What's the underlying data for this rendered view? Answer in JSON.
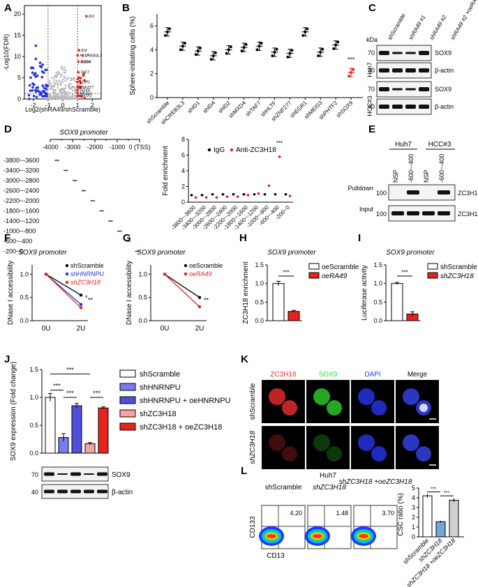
{
  "panels": {
    "A": {
      "letter": "A",
      "ylabel": "-Log10(FDR)",
      "xlabel": "Log2(shRA49/shScramble)",
      "yticks": [
        "20",
        "15",
        "10",
        "5",
        "0"
      ],
      "xticks": [
        "-2",
        "-1",
        "0",
        "1",
        "2"
      ],
      "genes": [
        "ID1",
        "ID2",
        "HLTF",
        "CREB3L3",
        "MXD4",
        "ID4",
        "TAF7",
        "EGR1",
        "ZNF277",
        "SOX9",
        "MEIS3",
        "PHTF2"
      ]
    },
    "B": {
      "letter": "B",
      "ylabel": "Sphere-initiating cells (%)",
      "yticks": [
        "6",
        "4",
        "2",
        "0"
      ],
      "sig": "***"
    },
    "C": {
      "letter": "C",
      "kda": "kDa",
      "lanes": [
        "shScramble",
        "shRA49 #1",
        "shRA49 #2",
        "shRA49 #2 +oeRA49"
      ],
      "rows": [
        {
          "kda": "70",
          "label": "SOX9",
          "group": "Huh7"
        },
        {
          "kda": "40",
          "label": "β-actin",
          "group": "Huh7"
        },
        {
          "kda": "70",
          "label": "SOX9",
          "group": "HCC#3"
        },
        {
          "kda": "40",
          "label": "β-actin",
          "group": "HCC#3"
        }
      ],
      "groups": [
        "Huh7",
        "HCC#3"
      ]
    },
    "D": {
      "letter": "D",
      "promoter_title": "SOX9 promoter",
      "axis_ticks": [
        "-4000",
        "-3000",
        "-2000",
        "-1000",
        "0 (TSS)"
      ],
      "axis_minor": [
        "-3500",
        "-2500",
        "-1500",
        "-500"
      ],
      "regions": [
        "-3800~-3600",
        "-3400~-3200",
        "-3000~-2800",
        "-2600~-2400",
        "-2200~-2000",
        "-1800~-1600",
        "-1400~-1200",
        "-1000~-800",
        "-600~-400",
        "-200~0"
      ],
      "ylabel": "Fold enrichment",
      "legend": [
        "IgG",
        "Anti-ZC3H18"
      ],
      "yticks": [
        "8",
        "6",
        "4",
        "2",
        "0"
      ],
      "sig": "***"
    },
    "E": {
      "letter": "E",
      "groups": [
        "Huh7",
        "HCC#3"
      ],
      "lanes": [
        "NSP",
        "-600~-400",
        "NSP",
        "-600~-400"
      ],
      "rows": [
        {
          "name": "Pulldown",
          "kda": "100",
          "label": "ZC3H18"
        },
        {
          "name": "Input",
          "kda": "100",
          "label": "ZC3H18"
        }
      ]
    },
    "F": {
      "letter": "F",
      "title": "SOX9 promoter",
      "ylabel": "DNase I accessibility",
      "yticks": [
        "1.0",
        "0.5",
        "0.0"
      ],
      "xticks": [
        "0U",
        "2U"
      ],
      "legend": [
        "shScramble",
        "shHNRNPU",
        "shZC3H18"
      ],
      "sig": [
        "*",
        "**"
      ]
    },
    "G": {
      "letter": "G",
      "title": "SOX9 promoter",
      "ylabel": "DNase I accessibility",
      "yticks": [
        "1.0",
        "0.5",
        "0.0"
      ],
      "xticks": [
        "0U",
        "2U"
      ],
      "legend": [
        "oeScramble",
        "oeRA49"
      ],
      "sig": "**"
    },
    "H": {
      "letter": "H",
      "title": "SOX9 promoter",
      "ylabel": "ZC3H18 enrichment",
      "yticks": [
        "1.5",
        "1.0",
        "0.5",
        "0.0"
      ],
      "legend": [
        "oeScramble",
        "oeRA49"
      ],
      "sig": "***"
    },
    "I": {
      "letter": "I",
      "title": "SOX9 promoter",
      "ylabel": "Luciferase activity",
      "yticks": [
        "1.5",
        "1.0",
        "0.5",
        "0.0"
      ],
      "legend": [
        "shScramble",
        "shZC3H18"
      ],
      "sig": "***"
    },
    "J": {
      "letter": "J",
      "ylabel": "SOX9 expression (Fold change)",
      "yticks": [
        "1.5",
        "1.0",
        "0.5",
        "0.0"
      ],
      "legend": [
        "shScramble",
        "shHNRNPU",
        "shHNRNPU + oeHNRNPU",
        "shZC3H18",
        "shZC3H18 + oeZC3H18"
      ],
      "sig": [
        "***",
        "***",
        "***",
        "***"
      ],
      "blot_rows": [
        {
          "kda": "70",
          "label": "SOX9"
        },
        {
          "kda": "40",
          "label": "β-actin"
        }
      ]
    },
    "K": {
      "letter": "K",
      "columns": [
        "ZC3H18",
        "SOX9",
        "DAPI",
        "Merge"
      ],
      "rows": [
        "shScramble",
        "shZC3H18"
      ]
    },
    "L": {
      "letter": "L",
      "title": "Huh7",
      "conditions": [
        "shScramble",
        "shZC3H18",
        "shZC3H18 +oeZC3H18"
      ],
      "gate_values": [
        "4.20",
        "1.48",
        "3.70"
      ],
      "xlabel": "CD13",
      "ylabel": "CD133",
      "bar_ylabel": "CSC ratio (%)",
      "bar_yticks": [
        "5",
        "4",
        "3",
        "2",
        "1",
        "0"
      ],
      "bar_labels": [
        "shScramble",
        "shZC3H18",
        "shZC3H18 +oeZC3H18"
      ],
      "sig": [
        "***",
        "***"
      ]
    }
  },
  "chart_data": [
    {
      "panel": "A",
      "type": "scatter",
      "xlabel": "Log2(shRA49/shScramble)",
      "ylabel": "-Log10(FDR)",
      "xlim": [
        -2.6,
        2.6
      ],
      "ylim": [
        0,
        22
      ],
      "annotations": [
        {
          "label": "ID1",
          "x": 1.6,
          "y": 19.5
        },
        {
          "label": "ID2",
          "x": 1.1,
          "y": 11.5
        },
        {
          "label": "HLTF",
          "x": 1.0,
          "y": 10.3
        },
        {
          "label": "CREB3L3",
          "x": 1.35,
          "y": 10.3
        },
        {
          "label": "MXD4",
          "x": 1.05,
          "y": 8.8
        },
        {
          "label": "ID4",
          "x": 1.3,
          "y": 8.8
        },
        {
          "label": "TAF7",
          "x": 1.05,
          "y": 6.3
        },
        {
          "label": "EGR1",
          "x": 1.0,
          "y": 4.0
        },
        {
          "label": "ZNF277",
          "x": 1.0,
          "y": 2.8
        },
        {
          "label": "SOX9",
          "x": 1.0,
          "y": 2.1
        },
        {
          "label": "MEIS3",
          "x": 1.0,
          "y": 1.4
        },
        {
          "label": "PHTF2",
          "x": 1.0,
          "y": 0.7
        }
      ]
    },
    {
      "panel": "B",
      "type": "scatter",
      "categories": [
        "shScramble",
        "shCREB3L3",
        "shID1",
        "shID4",
        "shID2",
        "shMXD4",
        "shTAF7",
        "shHLTF",
        "shZNF277",
        "shEGR1",
        "shMEIS3",
        "shPHTF2",
        "shSOX9"
      ],
      "values": [
        5.5,
        4.3,
        3.9,
        3.5,
        4.0,
        4.2,
        4.3,
        3.8,
        3.7,
        5.5,
        3.8,
        4.4,
        2.1
      ],
      "ylabel": "Sphere-initiating cells (%)",
      "ylim": [
        0,
        7
      ]
    },
    {
      "panel": "D",
      "type": "scatter",
      "categories": [
        "-3800~-3600",
        "-3400~-3200",
        "-3000~-2800",
        "-2600~-2400",
        "-2200~-2000",
        "-1800~-1600",
        "-1400~-1200",
        "-1000~-800",
        "-600~-400",
        "-200~0"
      ],
      "series": [
        {
          "name": "IgG",
          "values": [
            0.9,
            0.9,
            1.0,
            1.0,
            1.0,
            1.0,
            1.0,
            1.0,
            1.0,
            1.0
          ]
        },
        {
          "name": "Anti-ZC3H18",
          "values": [
            0.6,
            0.6,
            0.6,
            0.7,
            0.7,
            0.9,
            1.1,
            2.1,
            5.8,
            0.8
          ]
        }
      ],
      "ylabel": "Fold enrichment",
      "ylim": [
        0,
        8
      ]
    },
    {
      "panel": "F",
      "type": "line",
      "x": [
        "0U",
        "2U"
      ],
      "series": [
        {
          "name": "shScramble",
          "values": [
            1.0,
            0.55
          ]
        },
        {
          "name": "shHNRNPU",
          "values": [
            1.0,
            0.35
          ]
        },
        {
          "name": "shZC3H18",
          "values": [
            1.0,
            0.28
          ]
        }
      ],
      "ylim": [
        0,
        1.2
      ]
    },
    {
      "panel": "G",
      "type": "line",
      "x": [
        "0U",
        "2U"
      ],
      "series": [
        {
          "name": "oeScramble",
          "values": [
            1.0,
            0.5
          ]
        },
        {
          "name": "oeRA49",
          "values": [
            1.0,
            0.3
          ]
        }
      ],
      "ylim": [
        0,
        1.2
      ]
    },
    {
      "panel": "H",
      "type": "bar",
      "categories": [
        "oeScramble",
        "oeRA49"
      ],
      "values": [
        1.0,
        0.25
      ],
      "errors": [
        0.06,
        0.03
      ],
      "ylim": [
        0,
        1.5
      ]
    },
    {
      "panel": "I",
      "type": "bar",
      "categories": [
        "shScramble",
        "shZC3H18"
      ],
      "values": [
        1.0,
        0.18
      ],
      "errors": [
        0.03,
        0.06
      ],
      "ylim": [
        0,
        1.5
      ]
    },
    {
      "panel": "J",
      "type": "bar",
      "categories": [
        "shScramble",
        "shHNRNPU",
        "shHNRNPU + oeHNRNPU",
        "shZC3H18",
        "shZC3H18 + oeZC3H18"
      ],
      "values": [
        1.0,
        0.28,
        0.85,
        0.17,
        0.81
      ],
      "errors": [
        0.07,
        0.07,
        0.04,
        0.02,
        0.02
      ],
      "ylim": [
        0,
        1.5
      ]
    },
    {
      "panel": "L",
      "type": "bar",
      "categories": [
        "shScramble",
        "shZC3H18",
        "shZC3H18 +oeZC3H18"
      ],
      "values": [
        4.2,
        1.55,
        3.75
      ],
      "errors": [
        0.2,
        0.1,
        0.2
      ],
      "ylim": [
        0,
        5
      ]
    }
  ],
  "colors": {
    "red": "#e8231f",
    "blue": "#2132e8",
    "violet": "#7b7bf0",
    "darkblue": "#4f4fd8",
    "pink": "#f2a3a3",
    "grey": "#bbbbbb",
    "lightblue": "#6fa8dc",
    "lightgrey": "#d0d0d0"
  }
}
